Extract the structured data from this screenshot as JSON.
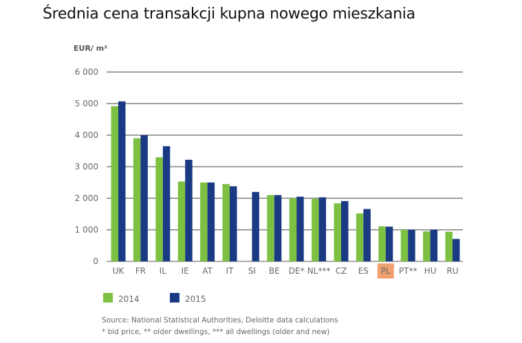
{
  "chart_data": {
    "type": "bar",
    "title": "Średnia cena transakcji kupna nowego mieszkania",
    "ylabel": "EUR/ m²",
    "xlabel": "",
    "ylim": [
      0,
      6000
    ],
    "yticks": [
      0,
      1000,
      2000,
      3000,
      4000,
      5000,
      6000
    ],
    "ytick_labels": [
      "0",
      "1 000",
      "2 000",
      "3 000",
      "4 000",
      "5 000",
      "6 000"
    ],
    "grid": true,
    "legend_placement": "bottom-left",
    "categories": [
      "UK",
      "FR",
      "IL",
      "IE",
      "AT",
      "IT",
      "SI",
      "BE",
      "DE*",
      "NL***",
      "CZ",
      "ES",
      "PL",
      "PT**",
      "HU",
      "RU"
    ],
    "highlighted_category": "PL",
    "highlight_color": "#f0a070",
    "series": [
      {
        "name": "2014",
        "color": "#7cc142",
        "values": [
          4920,
          3900,
          3300,
          2530,
          2500,
          2450,
          null,
          2100,
          2000,
          1980,
          1840,
          1520,
          1110,
          1000,
          950,
          940
        ]
      },
      {
        "name": "2015",
        "color": "#1b3a84",
        "values": [
          5070,
          4000,
          3650,
          3220,
          2500,
          2380,
          2200,
          2100,
          2050,
          2030,
          1910,
          1660,
          1100,
          1000,
          1000,
          710
        ]
      }
    ],
    "notes": [
      "Source: National Statistical Authorities, Deloitte data calculations",
      "* bid price, ** older dwellings, *** all dwellings (older and new)"
    ]
  }
}
